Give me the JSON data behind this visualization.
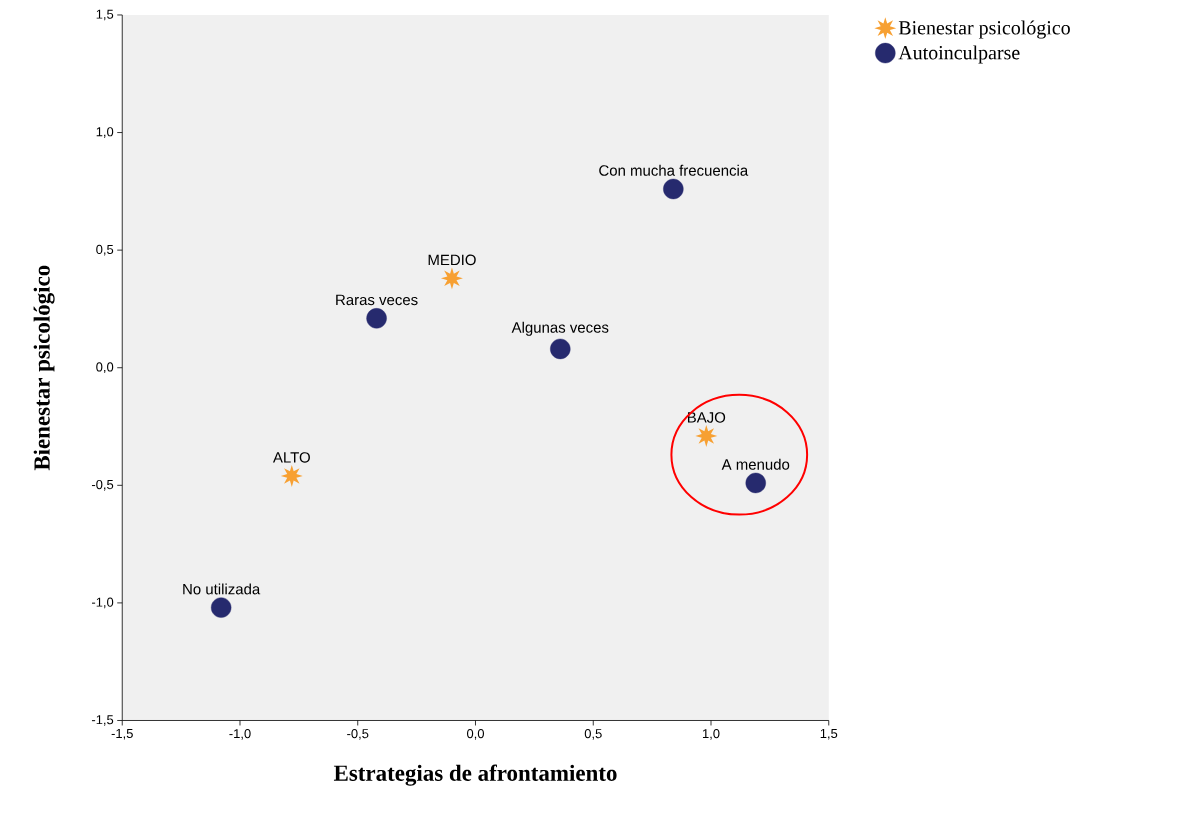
{
  "chart_data": {
    "type": "scatter",
    "xlabel": "Estrategias de afrontamiento",
    "ylabel": "Bienestar psicológico",
    "series": [
      {
        "name": "Bienestar psicológico",
        "color": "#f7a032",
        "marker": "star",
        "x": [
          -0.1,
          -0.78,
          0.98
        ],
        "values": [
          0.38,
          -0.46,
          -0.29
        ]
      },
      {
        "name": "Autoinculparse",
        "color": "#262a6e",
        "marker": "circle",
        "x": [
          0.84,
          -0.42,
          0.36,
          1.19,
          -1.08
        ],
        "values": [
          0.76,
          0.21,
          0.08,
          -0.49,
          -1.02
        ]
      }
    ],
    "annotations": [
      {
        "text": "MEDIO",
        "x": -0.1,
        "y": 0.38
      },
      {
        "text": "ALTO",
        "x": -0.78,
        "y": -0.46
      },
      {
        "text": "BAJO",
        "x": 0.98,
        "y": -0.29
      },
      {
        "text": "Con mucha frecuencia",
        "x": 0.84,
        "y": 0.76
      },
      {
        "text": "Raras veces",
        "x": -0.42,
        "y": 0.21
      },
      {
        "text": "Algunas veces",
        "x": 0.36,
        "y": 0.08
      },
      {
        "text": "A menudo",
        "x": 1.19,
        "y": -0.49
      },
      {
        "text": "No utilizada",
        "x": -1.08,
        "y": -1.02
      }
    ],
    "xlim": [
      -1.5,
      1.5
    ],
    "ylim": [
      -1.5,
      1.5
    ],
    "xticks": [
      {
        "value": -1.5,
        "label": "-1,5"
      },
      {
        "value": -1.0,
        "label": "-1,0"
      },
      {
        "value": -0.5,
        "label": "-0,5"
      },
      {
        "value": 0.0,
        "label": "0,0"
      },
      {
        "value": 0.5,
        "label": "0,5"
      },
      {
        "value": 1.0,
        "label": "1,0"
      },
      {
        "value": 1.5,
        "label": "1,5"
      }
    ],
    "yticks": [
      {
        "value": -1.5,
        "label": "-1,5"
      },
      {
        "value": -1.0,
        "label": "-1,0"
      },
      {
        "value": -0.5,
        "label": "-0,5"
      },
      {
        "value": 0.0,
        "label": "0,0"
      },
      {
        "value": 0.5,
        "label": "0,5"
      },
      {
        "value": 1.0,
        "label": "1,0"
      },
      {
        "value": 1.5,
        "label": "1,5"
      }
    ],
    "grid": false,
    "legend": "top right"
  }
}
